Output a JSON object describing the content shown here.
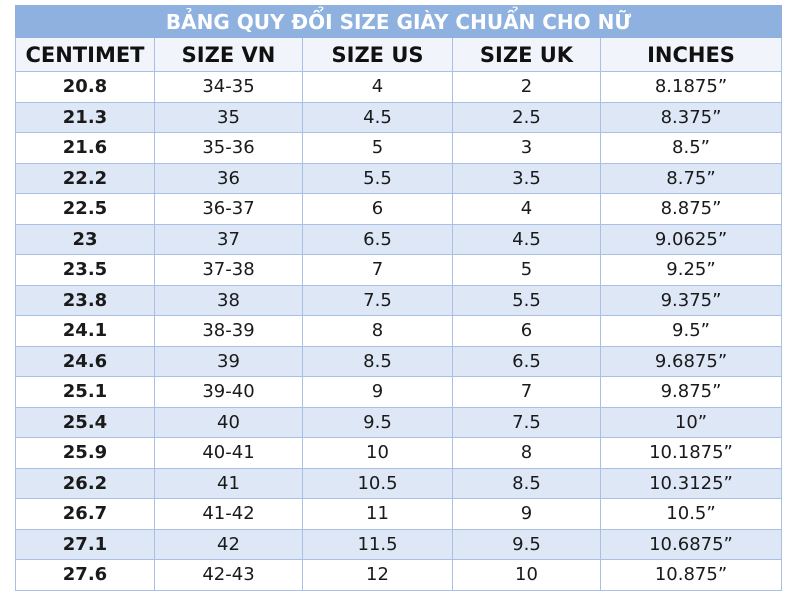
{
  "title": "BẢNG QUY ĐỔI SIZE GIÀY CHUẨN CHO NỮ",
  "table": {
    "header": [
      "CENTIMET",
      "SIZE VN",
      "SIZE US",
      "SIZE UK",
      "INCHES"
    ],
    "rows": [
      [
        "20.8",
        "34-35",
        "4",
        "2",
        "8.1875”"
      ],
      [
        "21.3",
        "35",
        "4.5",
        "2.5",
        "8.375”"
      ],
      [
        "21.6",
        "35-36",
        "5",
        "3",
        "8.5”"
      ],
      [
        "22.2",
        "36",
        "5.5",
        "3.5",
        "8.75”"
      ],
      [
        "22.5",
        "36-37",
        "6",
        "4",
        "8.875”"
      ],
      [
        "23",
        "37",
        "6.5",
        "4.5",
        "9.0625”"
      ],
      [
        "23.5",
        "37-38",
        "7",
        "5",
        "9.25”"
      ],
      [
        "23.8",
        "38",
        "7.5",
        "5.5",
        "9.375”"
      ],
      [
        "24.1",
        "38-39",
        "8",
        "6",
        "9.5”"
      ],
      [
        "24.6",
        "39",
        "8.5",
        "6.5",
        "9.6875”"
      ],
      [
        "25.1",
        "39-40",
        "9",
        "7",
        "9.875”"
      ],
      [
        "25.4",
        "40",
        "9.5",
        "7.5",
        "10”"
      ],
      [
        "25.9",
        "40-41",
        "10",
        "8",
        "10.1875”"
      ],
      [
        "26.2",
        "41",
        "10.5",
        "8.5",
        "10.3125”"
      ],
      [
        "26.7",
        "41-42",
        "11",
        "9",
        "10.5”"
      ],
      [
        "27.1",
        "42",
        "11.5",
        "9.5",
        "10.6875”"
      ],
      [
        "27.6",
        "42-43",
        "12",
        "10",
        "10.875”"
      ]
    ]
  }
}
